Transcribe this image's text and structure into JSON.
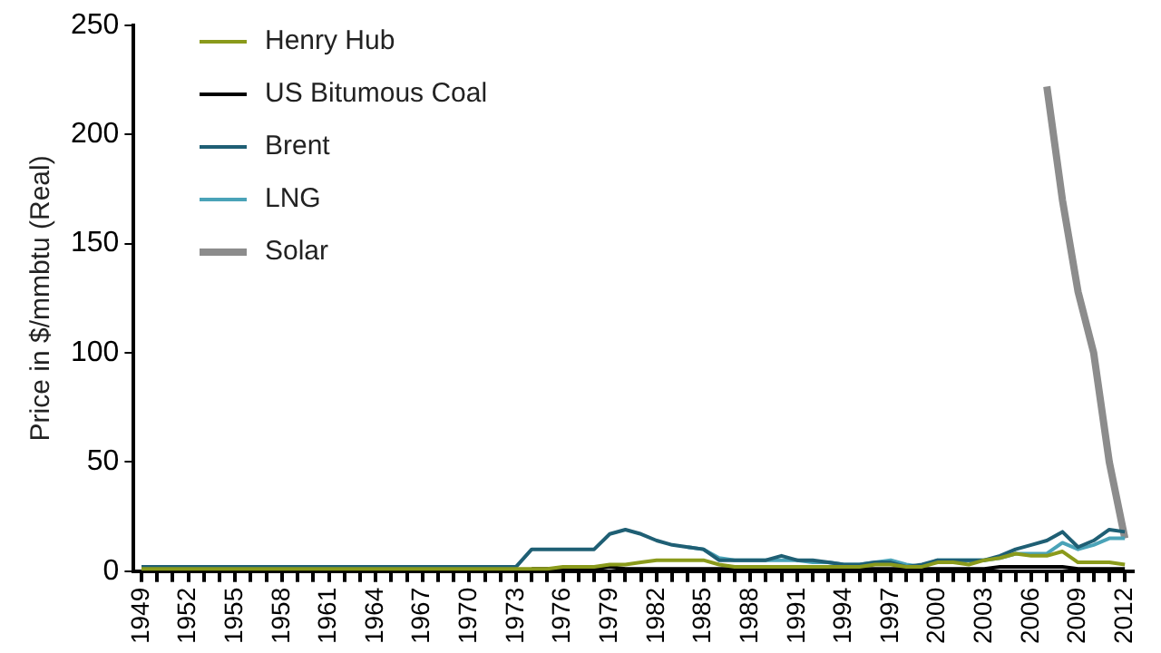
{
  "chart_data": {
    "type": "line",
    "ylabel": "Price in $/mmbtu (Real)",
    "categories": [
      "1949",
      null,
      null,
      "1952",
      null,
      null,
      "1955",
      null,
      null,
      "1958",
      null,
      null,
      "1961",
      null,
      null,
      "1964",
      null,
      null,
      "1967",
      null,
      null,
      "1970",
      null,
      null,
      "1973",
      null,
      null,
      "1976",
      null,
      null,
      "1979",
      null,
      null,
      "1982",
      null,
      null,
      "1985",
      null,
      null,
      "1988",
      null,
      null,
      "1991",
      null,
      null,
      "1994",
      null,
      null,
      "1997",
      null,
      null,
      "2000",
      null,
      null,
      "2003",
      null,
      null,
      "2006",
      null,
      null,
      "2009",
      null,
      null,
      "2012"
    ],
    "series": [
      {
        "name": "Henry Hub",
        "color": "#8a9a1b",
        "values": [
          1,
          1,
          1,
          1,
          1,
          1,
          1,
          1,
          1,
          1,
          1,
          1,
          1,
          1,
          1,
          1,
          1,
          1,
          1,
          1,
          1,
          1,
          1,
          1,
          1,
          1,
          1,
          2,
          2,
          2,
          3,
          3,
          4,
          5,
          5,
          5,
          5,
          3,
          2,
          2,
          2,
          2,
          2,
          2,
          2,
          2,
          2,
          3,
          3,
          2,
          2,
          4,
          4,
          3,
          5,
          6,
          8,
          7,
          7,
          9,
          4,
          4,
          4,
          3
        ]
      },
      {
        "name": "US Bitumous Coal",
        "color": "#000000",
        "values": [
          null,
          null,
          null,
          null,
          null,
          null,
          null,
          null,
          null,
          null,
          null,
          null,
          null,
          null,
          null,
          null,
          null,
          null,
          null,
          null,
          null,
          null,
          null,
          null,
          null,
          1,
          1,
          1,
          1,
          1,
          2,
          1,
          1,
          1,
          1,
          1,
          1,
          1,
          1,
          1,
          1,
          1,
          1,
          1,
          1,
          1,
          1,
          1,
          1,
          1,
          1,
          1,
          1,
          1,
          1,
          2,
          2,
          2,
          2,
          2,
          1,
          1,
          1,
          1
        ]
      },
      {
        "name": "Brent",
        "color": "#1f5f74",
        "values": [
          2,
          2,
          2,
          2,
          2,
          2,
          2,
          2,
          2,
          2,
          2,
          2,
          2,
          2,
          2,
          2,
          2,
          2,
          2,
          2,
          2,
          2,
          2,
          2,
          2,
          10,
          10,
          10,
          10,
          10,
          17,
          19,
          17,
          14,
          12,
          11,
          10,
          5,
          5,
          5,
          5,
          7,
          5,
          5,
          4,
          3,
          3,
          4,
          4,
          2,
          3,
          5,
          5,
          5,
          5,
          7,
          10,
          12,
          14,
          18,
          11,
          14,
          19,
          18
        ]
      },
      {
        "name": "LNG",
        "color": "#4aa3b8",
        "values": [
          null,
          null,
          null,
          null,
          null,
          null,
          null,
          null,
          null,
          null,
          null,
          null,
          null,
          null,
          null,
          null,
          null,
          null,
          null,
          null,
          null,
          null,
          null,
          null,
          null,
          null,
          null,
          null,
          null,
          null,
          null,
          null,
          null,
          null,
          null,
          11,
          10,
          6,
          5,
          5,
          5,
          5,
          5,
          4,
          4,
          3,
          3,
          4,
          5,
          3,
          2,
          5,
          5,
          5,
          5,
          6,
          8,
          8,
          8,
          13,
          10,
          12,
          15,
          15
        ]
      },
      {
        "name": "Solar",
        "color": "#8c8c8c",
        "values": [
          null,
          null,
          null,
          null,
          null,
          null,
          null,
          null,
          null,
          null,
          null,
          null,
          null,
          null,
          null,
          null,
          null,
          null,
          null,
          null,
          null,
          null,
          null,
          null,
          null,
          null,
          null,
          null,
          null,
          null,
          null,
          null,
          null,
          null,
          null,
          null,
          null,
          null,
          null,
          null,
          null,
          null,
          null,
          null,
          null,
          null,
          null,
          null,
          null,
          null,
          null,
          null,
          null,
          null,
          null,
          null,
          null,
          null,
          222,
          170,
          128,
          100,
          50,
          15
        ]
      }
    ],
    "ylim": [
      0,
      250
    ],
    "yticks": [
      0,
      50,
      100,
      150,
      200,
      250
    ],
    "grid": false,
    "legend": "top left",
    "marker": "none",
    "line_style": "solid"
  }
}
